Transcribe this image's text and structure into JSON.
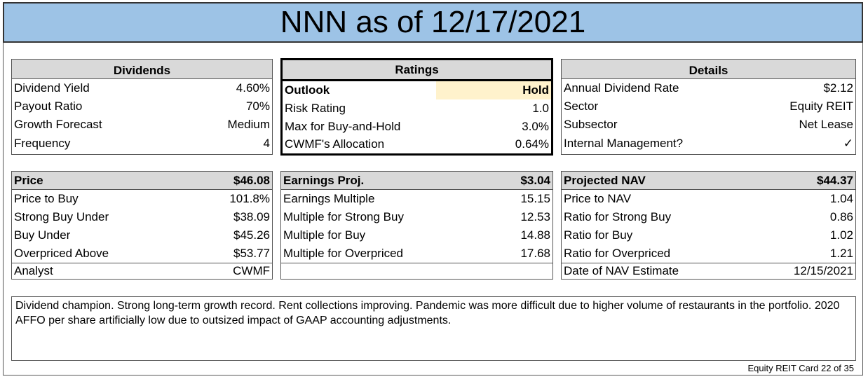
{
  "title": "NNN as of 12/17/2021",
  "dividends": {
    "header": "Dividends",
    "rows": [
      {
        "label": "Dividend Yield",
        "value": "4.60%"
      },
      {
        "label": "Payout Ratio",
        "value": "70%"
      },
      {
        "label": "Growth Forecast",
        "value": "Medium"
      },
      {
        "label": "Frequency",
        "value": "4"
      }
    ]
  },
  "ratings": {
    "header": "Ratings",
    "rows": [
      {
        "label": "Outlook",
        "value": "Hold"
      },
      {
        "label": "Risk Rating",
        "value": "1.0"
      },
      {
        "label": "Max for Buy-and-Hold",
        "value": "3.0%"
      },
      {
        "label": "CWMF's Allocation",
        "value": "0.64%"
      }
    ],
    "highlight_color": "#fff2cc"
  },
  "details": {
    "header": "Details",
    "rows": [
      {
        "label": "Annual Dividend Rate",
        "value": "$2.12"
      },
      {
        "label": "Sector",
        "value": "Equity REIT"
      },
      {
        "label": "Subsector",
        "value": "Net Lease"
      },
      {
        "label": "Internal Management?",
        "value": "✓"
      }
    ]
  },
  "price": {
    "header_label": "Price",
    "header_value": "$46.08",
    "rows": [
      {
        "label": "Price to Buy",
        "value": "101.8%"
      },
      {
        "label": "Strong Buy Under",
        "value": "$38.09"
      },
      {
        "label": "Buy Under",
        "value": "$45.26"
      },
      {
        "label": "Overpriced Above",
        "value": "$53.77"
      }
    ],
    "footer_label": "Analyst",
    "footer_value": "CWMF"
  },
  "earnings": {
    "header_label": "Earnings Proj.",
    "header_value": "$3.04",
    "rows": [
      {
        "label": "Earnings Multiple",
        "value": "15.15"
      },
      {
        "label": "Multiple for Strong Buy",
        "value": "12.53"
      },
      {
        "label": "Multiple for Buy",
        "value": "14.88"
      },
      {
        "label": "Multiple for Overpriced",
        "value": "17.68"
      }
    ]
  },
  "nav": {
    "header_label": "Projected NAV",
    "header_value": "$44.37",
    "rows": [
      {
        "label": "Price to NAV",
        "value": "1.04"
      },
      {
        "label": "Ratio for Strong Buy",
        "value": "0.86"
      },
      {
        "label": "Ratio for Buy",
        "value": "1.02"
      },
      {
        "label": "Ratio for Overpriced",
        "value": "1.21"
      }
    ],
    "footer_label": "Date of NAV Estimate",
    "footer_value": "12/15/2021"
  },
  "notes": "Dividend champion. Strong long-term growth record. Rent collections improving. Pandemic was more difficult due to higher volume of restaurants in the portfolio. 2020 AFFO per share artificially low due to outsized impact of GAAP accounting adjustments.",
  "footer": "Equity REIT Card 22 of 35",
  "colors": {
    "title_bg": "#9dc3e6",
    "header_bg": "#d9d9d9"
  }
}
